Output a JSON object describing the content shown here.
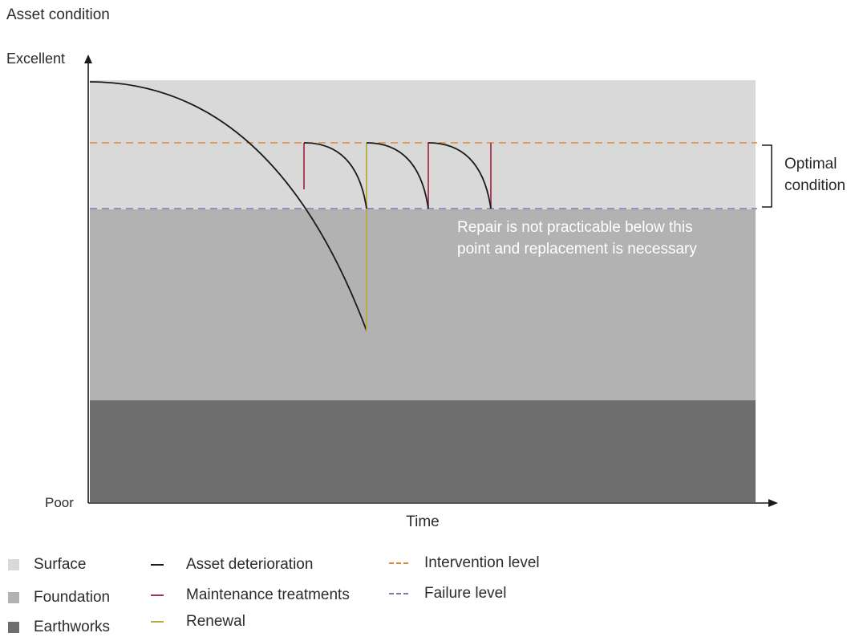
{
  "title": "Asset condition",
  "axes": {
    "y_top_label": "Excellent",
    "y_bottom_label": "Poor",
    "x_label": "Time"
  },
  "annotations": {
    "optimal_line1": "Optimal",
    "optimal_line2": "condition",
    "repair_line1": "Repair is not practicable below this",
    "repair_line2": "point and replacement is necessary"
  },
  "legend": {
    "layers": [
      {
        "label": "Surface",
        "color": "#d9d9d9"
      },
      {
        "label": "Foundation",
        "color": "#b2b2b2"
      },
      {
        "label": "Earthworks",
        "color": "#6e6e6e"
      }
    ],
    "lines": [
      {
        "label": "Asset deterioration",
        "color": "#1a1a1a"
      },
      {
        "label": "Maintenance treatments",
        "color": "#a8324a"
      },
      {
        "label": "Renewal",
        "color": "#b5ad3a"
      }
    ],
    "levels": [
      {
        "label": "Intervention level",
        "color": "#d98a3a"
      },
      {
        "label": "Failure level",
        "color": "#7a78b8"
      }
    ]
  }
}
